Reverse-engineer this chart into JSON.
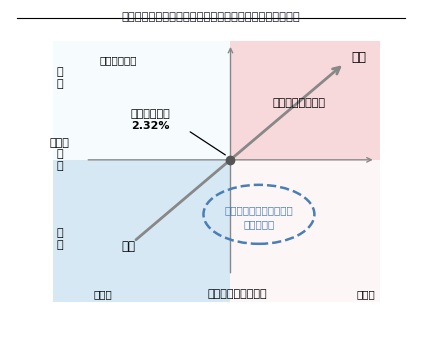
{
  "title": "図表２：市場環境、リスク耐性と適切な目標利回りの関係",
  "subtitle": "（イメージ）",
  "xlabel": "市場環境（見通し）",
  "x_left_label": "悲観的",
  "x_right_label": "楽観的",
  "y_top_label": "高\nい",
  "y_bottom_label": "低\nい",
  "y_mid_label": "リスク\n耐\n性",
  "arrow_top_right_label": "高い",
  "arrow_bottom_left_label": "低い",
  "center_label": "平均予定利率\n2.32%",
  "top_right_label": "適切な目標利回り",
  "ellipse_label1": "充分な資産を保有しない",
  "ellipse_label2": "退職後世帯",
  "bg_top_right_color": "#f5c8cc",
  "bg_bottom_left_color": "#c5dff0",
  "bg_top_left_color": "#e8f4fb",
  "bg_bottom_right_color": "#fce8ea",
  "axis_color": "#888888",
  "arrow_color": "#888888",
  "ellipse_color": "#4a7eb5",
  "center_dot_color": "#555555",
  "title_color": "#1a1a2e"
}
